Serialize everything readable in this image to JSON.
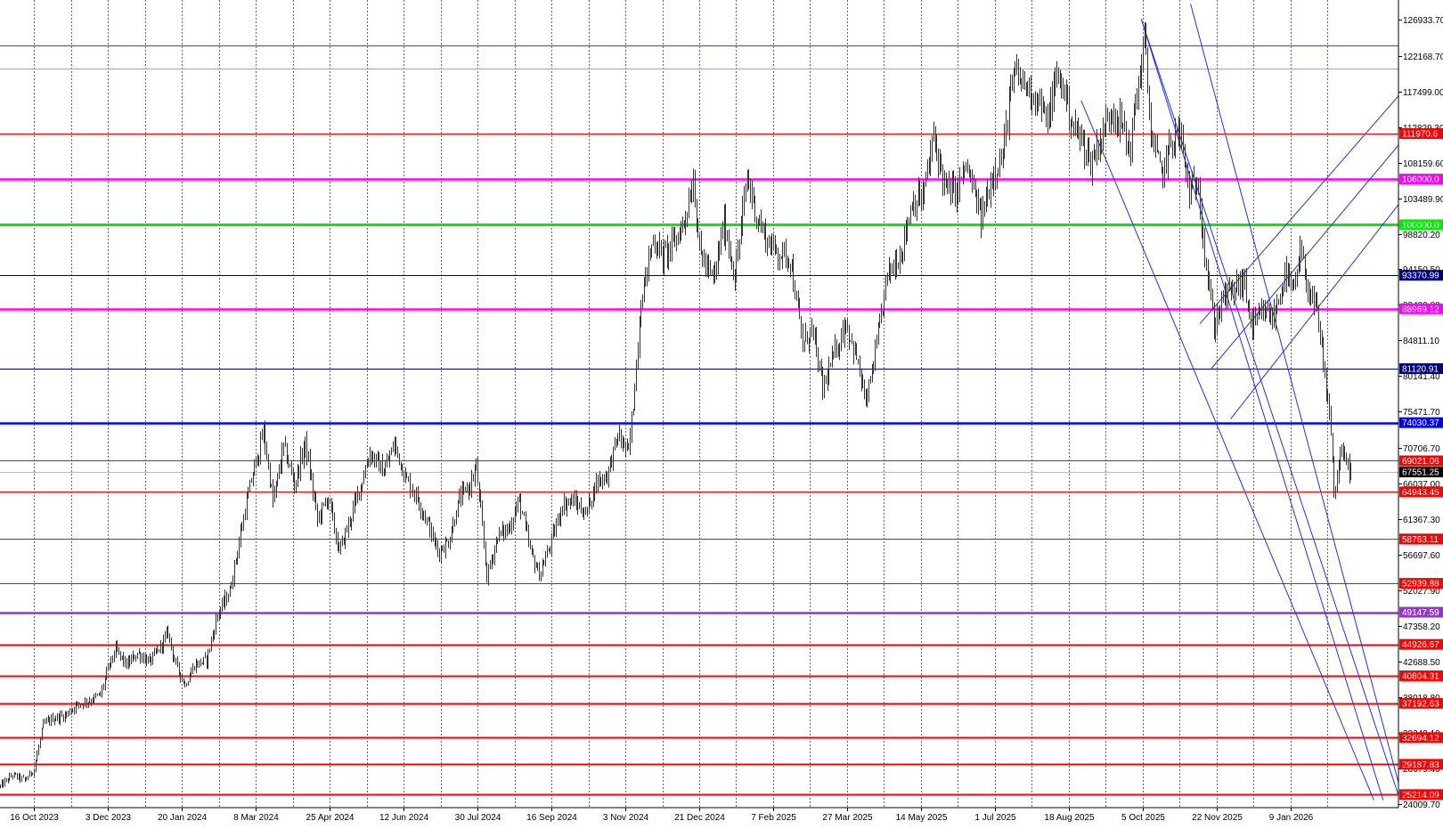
{
  "chart_data": {
    "type": "ohlc",
    "instrument_hint": "",
    "y_axis": {
      "ticks": [
        126933.7,
        122168.7,
        117499.0,
        112829.3,
        108159.6,
        103489.9,
        98820.2,
        94150.5,
        89480.8,
        84811.1,
        80141.4,
        75471.7,
        70706.7,
        66037.0,
        61367.3,
        56697.6,
        52027.9,
        47358.2,
        42688.5,
        38018.8,
        33349.1,
        28679.4,
        24009.7
      ],
      "tick_labels": [
        "126933.70",
        "122168.70",
        "117499.00",
        "112829.30",
        "108159.60",
        "103489.90",
        "98820.20",
        "94150.50",
        "89480.80",
        "84811.10",
        "80141.40",
        "75471.70",
        "70706.70",
        "66037.00",
        "61367.30",
        "56697.60",
        "52027.90",
        "47358.20",
        "42688.50",
        "38018.80",
        "33349.10",
        "28679.40",
        "24009.70"
      ],
      "range": [
        23500,
        129500
      ]
    },
    "x_axis": {
      "labels": [
        "16 Oct 2023",
        "3 Dec 2023",
        "20 Jan 2024",
        "8 Mar 2024",
        "25 Apr 2024",
        "12 Jun 2024",
        "30 Jul 2024",
        "16 Sep 2024",
        "3 Nov 2024",
        "21 Dec 2024",
        "7 Feb 2025",
        "27 Mar 2025",
        "14 May 2025",
        "1 Jul 2025",
        "18 Aug 2025",
        "5 Oct 2025",
        "22 Nov 2025",
        "9 Jan 2026"
      ],
      "range": [
        "2023-09-24",
        "2026-03-20"
      ]
    },
    "current_price": {
      "value": 67551.25,
      "label": "67551.25",
      "bg": "#000000"
    },
    "level_lines": [
      {
        "value": 123500,
        "label": "",
        "color": "#9933cc",
        "width": 1.2
      },
      {
        "value": 120500,
        "label": "",
        "color": "#ff66ff",
        "width": 1
      },
      {
        "value": 111970.6,
        "label": "111970.6",
        "color": "#ff0000",
        "width": 1
      },
      {
        "value": 106000.0,
        "label": "106000.0",
        "color": "#ff00ff",
        "width": 2.5
      },
      {
        "value": 100000.0,
        "label": "100000.0",
        "color": "#00ee00",
        "width": 3
      },
      {
        "value": 93370.99,
        "label": "93370.99",
        "color": "#000080",
        "width": 1
      },
      {
        "value": 88969.12,
        "label": "88969.12",
        "color": "#ff00ff",
        "width": 2.5
      },
      {
        "value": 81120.91,
        "label": "81120.91",
        "color": "#000080",
        "width": 1
      },
      {
        "value": 74030.37,
        "label": "74030.37",
        "color": "#0000ff",
        "width": 2.5
      },
      {
        "value": 69021.06,
        "label": "69021.06",
        "color": "#ff0000",
        "width": 1
      },
      {
        "value": 67551.25,
        "label": "",
        "color": "#bbbbbb",
        "width": 1
      },
      {
        "value": 64943.45,
        "label": "64943.45",
        "color": "#ff0000",
        "width": 1
      },
      {
        "value": 58763.11,
        "label": "58763.11",
        "color": "#ff0000",
        "width": 1
      },
      {
        "value": 52939.88,
        "label": "52939.88",
        "color": "#ff0000",
        "width": 1
      },
      {
        "value": 49147.59,
        "label": "49147.59",
        "color": "#9933cc",
        "width": 2.5
      },
      {
        "value": 44926.67,
        "label": "44926.67",
        "color": "#ff0000",
        "width": 2
      },
      {
        "value": 40804.31,
        "label": "40804.31",
        "color": "#ff0000",
        "width": 2
      },
      {
        "value": 37192.63,
        "label": "37192.63",
        "color": "#ff0000",
        "width": 2
      },
      {
        "value": 32694.12,
        "label": "32694.12",
        "color": "#ff0000",
        "width": 2
      },
      {
        "value": 29187.83,
        "label": "29187.83",
        "color": "#ff0000",
        "width": 2
      },
      {
        "value": 25214.09,
        "label": "25214.09",
        "color": "#ff0000",
        "width": 2
      }
    ],
    "trend_lines": [
      {
        "name": "channel-down-upper",
        "from": {
          "date": "2025-11-05",
          "price": 129000
        },
        "to": {
          "date": "2026-03-23",
          "price": 24500
        },
        "color": "#2233dd"
      },
      {
        "name": "channel-down-lower",
        "from": {
          "date": "2025-10-04",
          "price": 127000
        },
        "to": {
          "date": "2026-03-10",
          "price": 24500
        },
        "color": "#2233dd"
      },
      {
        "name": "channel-down-mid",
        "from": {
          "date": "2025-10-04",
          "price": 127000
        },
        "to": {
          "date": "2026-03-21",
          "price": 24500
        },
        "color": "#2233dd"
      },
      {
        "name": "channel-down-left",
        "from": {
          "date": "2025-08-26",
          "price": 116300
        },
        "to": {
          "date": "2026-03-04",
          "price": 24500
        },
        "color": "#2233dd"
      },
      {
        "name": "channel-up-1",
        "from": {
          "date": "2025-11-11",
          "price": 87000
        },
        "to": {
          "date": "2026-03-26",
          "price": 118300
        },
        "color": "#2233dd"
      },
      {
        "name": "channel-up-2",
        "from": {
          "date": "2025-11-18",
          "price": 81000
        },
        "to": {
          "date": "2026-03-26",
          "price": 111900
        },
        "color": "#2233dd"
      },
      {
        "name": "channel-up-3",
        "from": {
          "date": "2025-12-01",
          "price": 74500
        },
        "to": {
          "date": "2026-03-26",
          "price": 104200
        },
        "color": "#2233dd"
      }
    ],
    "price_path": [
      [
        "2023-09-24",
        26300
      ],
      [
        "2023-10-02",
        27800
      ],
      [
        "2023-10-10",
        27100
      ],
      [
        "2023-10-16",
        28600
      ],
      [
        "2023-10-22",
        34400
      ],
      [
        "2023-10-28",
        35200
      ],
      [
        "2023-11-05",
        35600
      ],
      [
        "2023-11-12",
        36900
      ],
      [
        "2023-11-20",
        37500
      ],
      [
        "2023-11-28",
        38300
      ],
      [
        "2023-12-03",
        41800
      ],
      [
        "2023-12-08",
        44200
      ],
      [
        "2023-12-15",
        42200
      ],
      [
        "2023-12-22",
        43800
      ],
      [
        "2023-12-30",
        42600
      ],
      [
        "2024-01-05",
        44300
      ],
      [
        "2024-01-11",
        46500
      ],
      [
        "2024-01-15",
        42800
      ],
      [
        "2024-01-22",
        39600
      ],
      [
        "2024-01-28",
        42200
      ],
      [
        "2024-02-05",
        42900
      ],
      [
        "2024-02-12",
        48800
      ],
      [
        "2024-02-20",
        51900
      ],
      [
        "2024-02-28",
        60600
      ],
      [
        "2024-03-05",
        66500
      ],
      [
        "2024-03-13",
        72800
      ],
      [
        "2024-03-19",
        63600
      ],
      [
        "2024-03-26",
        70900
      ],
      [
        "2024-04-02",
        65900
      ],
      [
        "2024-04-09",
        71300
      ],
      [
        "2024-04-17",
        61300
      ],
      [
        "2024-04-24",
        64300
      ],
      [
        "2024-05-01",
        57000
      ],
      [
        "2024-05-08",
        61300
      ],
      [
        "2024-05-15",
        65900
      ],
      [
        "2024-05-21",
        70100
      ],
      [
        "2024-05-30",
        67600
      ],
      [
        "2024-06-06",
        71200
      ],
      [
        "2024-06-13",
        66800
      ],
      [
        "2024-06-20",
        64500
      ],
      [
        "2024-06-27",
        61200
      ],
      [
        "2024-07-04",
        57100
      ],
      [
        "2024-07-11",
        58400
      ],
      [
        "2024-07-18",
        64000
      ],
      [
        "2024-07-25",
        65800
      ],
      [
        "2024-07-29",
        68300
      ],
      [
        "2024-08-05",
        53800
      ],
      [
        "2024-08-12",
        59200
      ],
      [
        "2024-08-19",
        60100
      ],
      [
        "2024-08-26",
        63900
      ],
      [
        "2024-09-02",
        57200
      ],
      [
        "2024-09-08",
        54100
      ],
      [
        "2024-09-16",
        58500
      ],
      [
        "2024-09-23",
        63300
      ],
      [
        "2024-09-30",
        63800
      ],
      [
        "2024-10-08",
        62100
      ],
      [
        "2024-10-15",
        66200
      ],
      [
        "2024-10-22",
        67200
      ],
      [
        "2024-10-29",
        72300
      ],
      [
        "2024-11-05",
        70000
      ],
      [
        "2024-11-08",
        76500
      ],
      [
        "2024-11-13",
        90200
      ],
      [
        "2024-11-21",
        98200
      ],
      [
        "2024-11-27",
        95800
      ],
      [
        "2024-12-05",
        97800
      ],
      [
        "2024-12-11",
        100500
      ],
      [
        "2024-12-17",
        106100
      ],
      [
        "2024-12-21",
        96500
      ],
      [
        "2024-12-30",
        92600
      ],
      [
        "2025-01-06",
        100300
      ],
      [
        "2025-01-13",
        93200
      ],
      [
        "2025-01-21",
        106300
      ],
      [
        "2025-01-27",
        101200
      ],
      [
        "2025-02-03",
        97800
      ],
      [
        "2025-02-10",
        96400
      ],
      [
        "2025-02-18",
        95600
      ],
      [
        "2025-02-26",
        84200
      ],
      [
        "2025-03-04",
        86400
      ],
      [
        "2025-03-11",
        78500
      ],
      [
        "2025-03-18",
        82700
      ],
      [
        "2025-03-26",
        87200
      ],
      [
        "2025-04-02",
        82500
      ],
      [
        "2025-04-08",
        76400
      ],
      [
        "2025-04-15",
        84100
      ],
      [
        "2025-04-22",
        93400
      ],
      [
        "2025-05-01",
        96500
      ],
      [
        "2025-05-08",
        103100
      ],
      [
        "2025-05-15",
        103600
      ],
      [
        "2025-05-22",
        111500
      ],
      [
        "2025-05-30",
        104600
      ],
      [
        "2025-06-06",
        104300
      ],
      [
        "2025-06-12",
        107800
      ],
      [
        "2025-06-22",
        100800
      ],
      [
        "2025-06-30",
        107200
      ],
      [
        "2025-07-06",
        108900
      ],
      [
        "2025-07-10",
        116300
      ],
      [
        "2025-07-14",
        119800
      ],
      [
        "2025-07-22",
        118000
      ],
      [
        "2025-07-31",
        115800
      ],
      [
        "2025-08-03",
        113100
      ],
      [
        "2025-08-10",
        119400
      ],
      [
        "2025-08-14",
        118300
      ],
      [
        "2025-08-20",
        113200
      ],
      [
        "2025-08-28",
        110400
      ],
      [
        "2025-09-01",
        108200
      ],
      [
        "2025-09-08",
        111600
      ],
      [
        "2025-09-15",
        115300
      ],
      [
        "2025-09-22",
        112800
      ],
      [
        "2025-09-26",
        109600
      ],
      [
        "2025-10-02",
        118600
      ],
      [
        "2025-10-06",
        124500
      ],
      [
        "2025-10-10",
        111800
      ],
      [
        "2025-10-17",
        106500
      ],
      [
        "2025-10-24",
        111300
      ],
      [
        "2025-10-29",
        112200
      ],
      [
        "2025-11-04",
        104100
      ],
      [
        "2025-11-10",
        105800
      ],
      [
        "2025-11-14",
        96200
      ],
      [
        "2025-11-20",
        86700
      ],
      [
        "2025-11-26",
        90400
      ],
      [
        "2025-12-02",
        91300
      ],
      [
        "2025-12-09",
        92700
      ],
      [
        "2025-12-15",
        86400
      ],
      [
        "2025-12-22",
        88500
      ],
      [
        "2025-12-29",
        87800
      ],
      [
        "2026-01-05",
        93600
      ],
      [
        "2026-01-11",
        90900
      ],
      [
        "2026-01-15",
        96400
      ],
      [
        "2026-01-20",
        91800
      ],
      [
        "2026-01-26",
        88200
      ],
      [
        "2026-02-01",
        78100
      ],
      [
        "2026-02-04",
        73400
      ],
      [
        "2026-02-06",
        64200
      ],
      [
        "2026-02-10",
        70100
      ],
      [
        "2026-02-14",
        68900
      ],
      [
        "2026-02-17",
        67551
      ]
    ]
  }
}
